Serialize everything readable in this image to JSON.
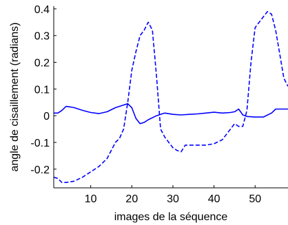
{
  "chart_data": {
    "type": "line",
    "title": "",
    "xlabel": "images de la séquence",
    "ylabel": "angle de cisaillement (radians)",
    "xlim": [
      1,
      58
    ],
    "ylim": [
      -0.27,
      0.41
    ],
    "xticks": [
      10,
      20,
      30,
      40,
      50
    ],
    "yticks": [
      -0.2,
      -0.1,
      0,
      0.1,
      0.2,
      0.3,
      0.4
    ],
    "xtick_labels": [
      "10",
      "20",
      "30",
      "40",
      "50"
    ],
    "ytick_labels": [
      "-0.2",
      "-0.1",
      "0",
      "0.1",
      "0.2",
      "0.3",
      "0.4"
    ],
    "grid": false,
    "legend": "none",
    "series": [
      {
        "style": "solid",
        "color": "#0000ff",
        "x": [
          1,
          2,
          3,
          4,
          5,
          6,
          8,
          10,
          12,
          14,
          16,
          18,
          19,
          20,
          21,
          22,
          23,
          24,
          26,
          28,
          30,
          32,
          34,
          36,
          38,
          40,
          42,
          44,
          45,
          46,
          47,
          48,
          50,
          52,
          54,
          55,
          56,
          58
        ],
        "y": [
          0.01,
          0.01,
          0.02,
          0.035,
          0.033,
          0.03,
          0.02,
          0.012,
          0.008,
          0.015,
          0.03,
          0.04,
          0.045,
          0.03,
          -0.01,
          -0.03,
          -0.025,
          -0.015,
          0.0,
          0.01,
          0.005,
          0.003,
          0.005,
          0.007,
          0.01,
          0.013,
          0.01,
          0.012,
          0.015,
          0.025,
          0.003,
          -0.003,
          -0.005,
          -0.005,
          0.01,
          0.025,
          0.025,
          0.025
        ]
      },
      {
        "style": "dashed",
        "color": "#0000ff",
        "x": [
          1,
          2,
          3,
          4,
          6,
          8,
          10,
          12,
          14,
          15,
          16,
          17,
          18,
          19,
          20,
          21,
          22,
          23,
          24,
          25,
          26,
          27,
          28,
          29,
          30,
          31,
          32,
          33,
          34,
          36,
          38,
          40,
          42,
          44,
          45,
          46,
          47,
          48,
          49,
          50,
          51,
          52,
          53,
          54,
          55,
          56,
          57,
          58
        ],
        "y": [
          -0.23,
          -0.235,
          -0.25,
          -0.25,
          -0.245,
          -0.23,
          -0.21,
          -0.19,
          -0.16,
          -0.13,
          -0.1,
          -0.085,
          -0.05,
          0.05,
          0.17,
          0.24,
          0.3,
          0.32,
          0.35,
          0.32,
          0.15,
          -0.05,
          -0.08,
          -0.1,
          -0.12,
          -0.13,
          -0.135,
          -0.11,
          -0.11,
          -0.11,
          -0.11,
          -0.105,
          -0.09,
          -0.05,
          -0.03,
          -0.04,
          -0.04,
          0.02,
          0.2,
          0.33,
          0.35,
          0.37,
          0.39,
          0.38,
          0.32,
          0.23,
          0.14,
          0.11
        ]
      }
    ]
  }
}
